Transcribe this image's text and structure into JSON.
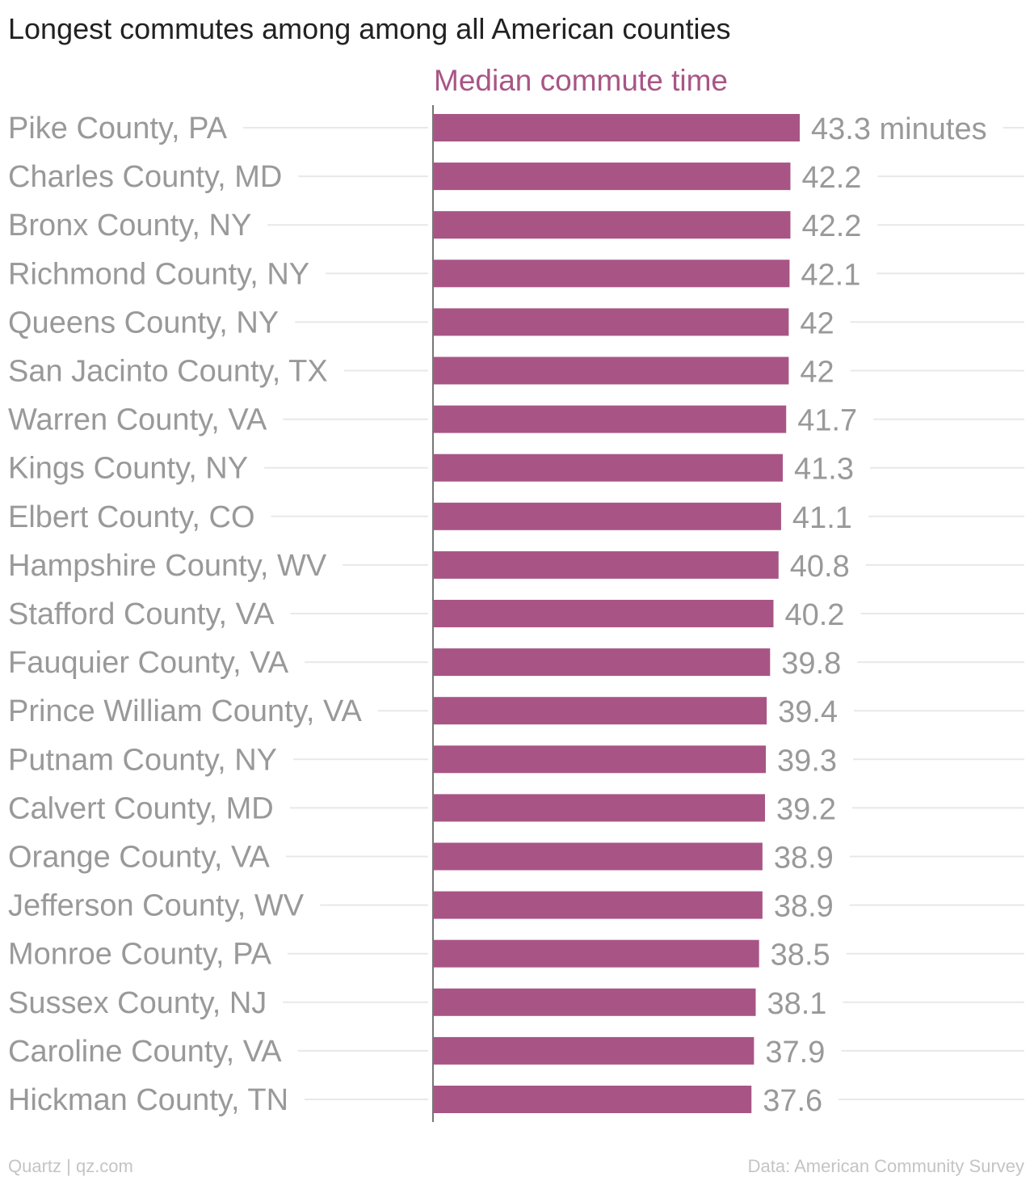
{
  "chart_data": {
    "type": "bar",
    "orientation": "horizontal",
    "title": "Longest commutes among among all American counties",
    "series": [
      {
        "name": "Median commute time",
        "values": [
          43.3,
          42.2,
          42.2,
          42.1,
          42,
          42,
          41.7,
          41.3,
          41.1,
          40.8,
          40.2,
          39.8,
          39.4,
          39.3,
          39.2,
          38.9,
          38.9,
          38.5,
          38.1,
          37.9,
          37.6
        ]
      }
    ],
    "categories": [
      "Pike County, PA",
      "Charles County, MD",
      "Bronx County, NY",
      "Richmond County, NY",
      "Queens County, NY",
      "San Jacinto County, TX",
      "Warren County, VA",
      "Kings County, NY",
      "Elbert County, CO",
      "Hampshire County, WV",
      "Stafford County, VA",
      "Fauquier County, VA",
      "Prince William County, VA",
      "Putnam County, NY",
      "Calvert County, MD",
      "Orange County, VA",
      "Jefferson County, WV",
      "Monroe County, PA",
      "Sussex County, NJ",
      "Caroline County, VA",
      "Hickman County, TN"
    ],
    "value_labels": [
      "43.3 minutes",
      "42.2",
      "42.2",
      "42.1",
      "42",
      "42",
      "41.7",
      "41.3",
      "41.1",
      "40.8",
      "40.2",
      "39.8",
      "39.4",
      "39.3",
      "39.2",
      "38.9",
      "38.9",
      "38.5",
      "38.1",
      "37.9",
      "37.6"
    ],
    "xlim": [
      0,
      43.3
    ],
    "grid": true,
    "bar_color": "#a85586",
    "label_color": "#999999",
    "value_color": "#999999",
    "title_color": "#222222",
    "series_label_color": "#a85586",
    "gridline_color": "#e8e8e8",
    "axis_color": "#777777"
  },
  "footer": {
    "source_left": "Quartz | qz.com",
    "source_right": "Data: American Community Survey",
    "color": "#c4c4c4"
  }
}
